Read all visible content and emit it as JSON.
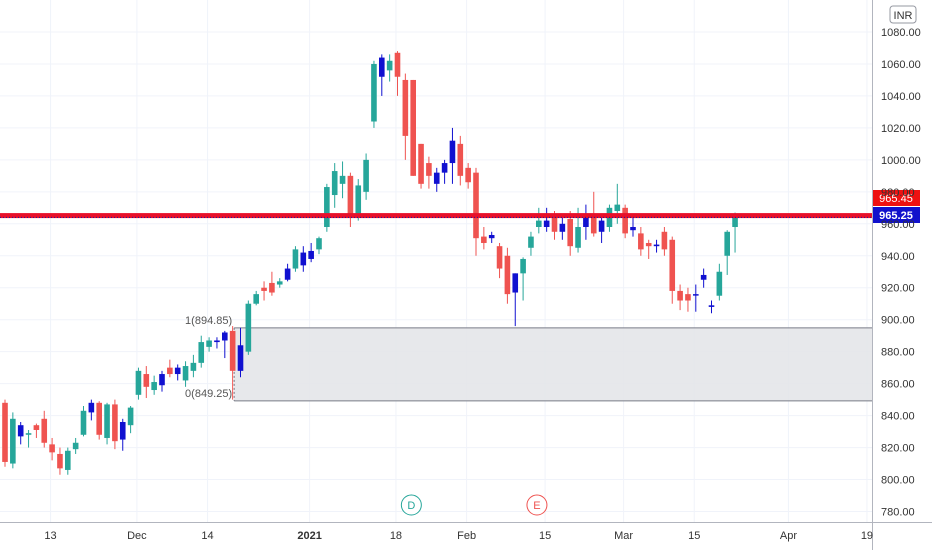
{
  "currency_badge": "INR",
  "colors": {
    "bull": "#26a69a",
    "bear": "#ef5350",
    "bull_blue": "#1010d0",
    "resistance": "#e8102a",
    "zone_fill": "#e3e4e8",
    "grid": "#f0f3fa",
    "axis_text": "#333333",
    "price_tag_red": "#ee1111",
    "price_tag_blue": "#1111cc"
  },
  "chart_data": {
    "type": "candlestick",
    "ylim": [
      775,
      1090
    ],
    "y_ticks": [
      "1080.00",
      "1060.00",
      "1040.00",
      "1020.00",
      "1000.00",
      "980.00",
      "960.00",
      "940.00",
      "920.00",
      "900.00",
      "880.00",
      "860.00",
      "840.00",
      "820.00",
      "800.00",
      "780.00"
    ],
    "y_tick_values": [
      1080,
      1060,
      1040,
      1020,
      1000,
      980,
      960,
      940,
      920,
      900,
      880,
      860,
      840,
      820,
      800,
      780
    ],
    "x_ticks": [
      {
        "label": "13",
        "index": 3,
        "bold": false
      },
      {
        "label": "Dec",
        "index": 14,
        "bold": false
      },
      {
        "label": "14",
        "index": 23,
        "bold": false
      },
      {
        "label": "2021",
        "index": 36,
        "bold": true
      },
      {
        "label": "18",
        "index": 47,
        "bold": false
      },
      {
        "label": "Feb",
        "index": 56,
        "bold": false
      },
      {
        "label": "15",
        "index": 66,
        "bold": false
      },
      {
        "label": "Mar",
        "index": 76,
        "bold": false
      },
      {
        "label": "15",
        "index": 85,
        "bold": false
      },
      {
        "label": "Apr",
        "index": 97,
        "bold": false
      },
      {
        "label": "19",
        "index": 107,
        "bold": false
      }
    ],
    "candles": [
      {
        "o": 848,
        "h": 850,
        "l": 808,
        "c": 811,
        "d": "dn"
      },
      {
        "o": 810,
        "h": 842,
        "l": 807,
        "c": 838,
        "d": "up"
      },
      {
        "o": 834,
        "h": 836,
        "l": 822,
        "c": 827,
        "d": "upb"
      },
      {
        "o": 828,
        "h": 831,
        "l": 820,
        "c": 829,
        "d": "up"
      },
      {
        "o": 831,
        "h": 835,
        "l": 826,
        "c": 834,
        "d": "dn"
      },
      {
        "o": 838,
        "h": 843,
        "l": 820,
        "c": 823,
        "d": "dn"
      },
      {
        "o": 822,
        "h": 826,
        "l": 812,
        "c": 817,
        "d": "dn"
      },
      {
        "o": 816,
        "h": 820,
        "l": 803,
        "c": 807,
        "d": "dn"
      },
      {
        "o": 806,
        "h": 820,
        "l": 803,
        "c": 818,
        "d": "up"
      },
      {
        "o": 819,
        "h": 826,
        "l": 816,
        "c": 823,
        "d": "up"
      },
      {
        "o": 828,
        "h": 846,
        "l": 827,
        "c": 843,
        "d": "up"
      },
      {
        "o": 842,
        "h": 850,
        "l": 837,
        "c": 848,
        "d": "upb"
      },
      {
        "o": 848,
        "h": 849,
        "l": 825,
        "c": 828,
        "d": "dn"
      },
      {
        "o": 847,
        "h": 848,
        "l": 822,
        "c": 826,
        "d": "up"
      },
      {
        "o": 847,
        "h": 850,
        "l": 819,
        "c": 824,
        "d": "dn"
      },
      {
        "o": 825,
        "h": 838,
        "l": 818,
        "c": 836,
        "d": "upb"
      },
      {
        "o": 834,
        "h": 846,
        "l": 829,
        "c": 845,
        "d": "up"
      },
      {
        "o": 853,
        "h": 870,
        "l": 850,
        "c": 868,
        "d": "up"
      },
      {
        "o": 866,
        "h": 871,
        "l": 851,
        "c": 858,
        "d": "dn"
      },
      {
        "o": 856,
        "h": 865,
        "l": 853,
        "c": 861,
        "d": "up"
      },
      {
        "o": 859,
        "h": 868,
        "l": 855,
        "c": 866,
        "d": "upb"
      },
      {
        "o": 870,
        "h": 875,
        "l": 864,
        "c": 866,
        "d": "dn"
      },
      {
        "o": 866,
        "h": 872,
        "l": 862,
        "c": 870,
        "d": "upb"
      },
      {
        "o": 862,
        "h": 874,
        "l": 858,
        "c": 871,
        "d": "up"
      },
      {
        "o": 868,
        "h": 878,
        "l": 864,
        "c": 873,
        "d": "up"
      },
      {
        "o": 873,
        "h": 890,
        "l": 870,
        "c": 886,
        "d": "up"
      },
      {
        "o": 883,
        "h": 889,
        "l": 880,
        "c": 887,
        "d": "up"
      },
      {
        "o": 886,
        "h": 889,
        "l": 882,
        "c": 887,
        "d": "upb"
      },
      {
        "o": 887,
        "h": 893,
        "l": 876,
        "c": 892,
        "d": "upb"
      },
      {
        "o": 893,
        "h": 896,
        "l": 850,
        "c": 868,
        "d": "dn"
      },
      {
        "o": 868,
        "h": 895,
        "l": 864,
        "c": 884,
        "d": "upb"
      },
      {
        "o": 880,
        "h": 912,
        "l": 878,
        "c": 910,
        "d": "up"
      },
      {
        "o": 910,
        "h": 918,
        "l": 909,
        "c": 916,
        "d": "up"
      },
      {
        "o": 918,
        "h": 924,
        "l": 912,
        "c": 920,
        "d": "dn"
      },
      {
        "o": 917,
        "h": 930,
        "l": 915,
        "c": 923,
        "d": "dn"
      },
      {
        "o": 922,
        "h": 926,
        "l": 920,
        "c": 924,
        "d": "up"
      },
      {
        "o": 925,
        "h": 935,
        "l": 924,
        "c": 932,
        "d": "upb"
      },
      {
        "o": 932,
        "h": 946,
        "l": 930,
        "c": 944,
        "d": "up"
      },
      {
        "o": 934,
        "h": 946,
        "l": 930,
        "c": 942,
        "d": "upb"
      },
      {
        "o": 938,
        "h": 948,
        "l": 936,
        "c": 943,
        "d": "upb"
      },
      {
        "o": 944,
        "h": 952,
        "l": 941,
        "c": 951,
        "d": "up"
      },
      {
        "o": 958,
        "h": 985,
        "l": 955,
        "c": 983,
        "d": "up"
      },
      {
        "o": 978,
        "h": 998,
        "l": 970,
        "c": 993,
        "d": "up"
      },
      {
        "o": 985,
        "h": 999,
        "l": 976,
        "c": 990,
        "d": "up"
      },
      {
        "o": 990,
        "h": 992,
        "l": 958,
        "c": 964,
        "d": "dn"
      },
      {
        "o": 966,
        "h": 988,
        "l": 962,
        "c": 984,
        "d": "up"
      },
      {
        "o": 980,
        "h": 1004,
        "l": 975,
        "c": 1000,
        "d": "up"
      },
      {
        "o": 1024,
        "h": 1062,
        "l": 1020,
        "c": 1060,
        "d": "up"
      },
      {
        "o": 1052,
        "h": 1066,
        "l": 1040,
        "c": 1064,
        "d": "upb"
      },
      {
        "o": 1056,
        "h": 1066,
        "l": 1049,
        "c": 1062,
        "d": "up"
      },
      {
        "o": 1067,
        "h": 1068,
        "l": 1040,
        "c": 1052,
        "d": "dn"
      },
      {
        "o": 1050,
        "h": 1054,
        "l": 1000,
        "c": 1015,
        "d": "dn"
      },
      {
        "o": 1050,
        "h": 1050,
        "l": 990,
        "c": 990,
        "d": "dn"
      },
      {
        "o": 1010,
        "h": 1010,
        "l": 982,
        "c": 985,
        "d": "dn"
      },
      {
        "o": 998,
        "h": 1002,
        "l": 982,
        "c": 990,
        "d": "dn"
      },
      {
        "o": 985,
        "h": 995,
        "l": 980,
        "c": 992,
        "d": "upb"
      },
      {
        "o": 992,
        "h": 1000,
        "l": 985,
        "c": 998,
        "d": "upb"
      },
      {
        "o": 998,
        "h": 1020,
        "l": 985,
        "c": 1012,
        "d": "upb"
      },
      {
        "o": 1010,
        "h": 1015,
        "l": 984,
        "c": 990,
        "d": "dn"
      },
      {
        "o": 995,
        "h": 998,
        "l": 982,
        "c": 986,
        "d": "dn"
      },
      {
        "o": 992,
        "h": 995,
        "l": 940,
        "c": 951,
        "d": "dn"
      },
      {
        "o": 952,
        "h": 958,
        "l": 944,
        "c": 948,
        "d": "dn"
      },
      {
        "o": 953,
        "h": 955,
        "l": 948,
        "c": 951,
        "d": "upb"
      },
      {
        "o": 946,
        "h": 948,
        "l": 926,
        "c": 932,
        "d": "dn"
      },
      {
        "o": 940,
        "h": 945,
        "l": 910,
        "c": 916,
        "d": "dn"
      },
      {
        "o": 917,
        "h": 929,
        "l": 896,
        "c": 929,
        "d": "upb"
      },
      {
        "o": 929,
        "h": 939,
        "l": 912,
        "c": 938,
        "d": "up"
      },
      {
        "o": 945,
        "h": 955,
        "l": 940,
        "c": 952,
        "d": "up"
      },
      {
        "o": 958,
        "h": 970,
        "l": 954,
        "c": 962,
        "d": "up"
      },
      {
        "o": 962,
        "h": 970,
        "l": 955,
        "c": 958,
        "d": "upb"
      },
      {
        "o": 964,
        "h": 968,
        "l": 950,
        "c": 955,
        "d": "dn"
      },
      {
        "o": 955,
        "h": 964,
        "l": 950,
        "c": 960,
        "d": "upb"
      },
      {
        "o": 963,
        "h": 968,
        "l": 940,
        "c": 946,
        "d": "dn"
      },
      {
        "o": 945,
        "h": 970,
        "l": 942,
        "c": 958,
        "d": "up"
      },
      {
        "o": 958,
        "h": 972,
        "l": 950,
        "c": 964,
        "d": "upb"
      },
      {
        "o": 966,
        "h": 980,
        "l": 952,
        "c": 954,
        "d": "dn"
      },
      {
        "o": 955,
        "h": 964,
        "l": 948,
        "c": 962,
        "d": "upb"
      },
      {
        "o": 958,
        "h": 972,
        "l": 955,
        "c": 970,
        "d": "up"
      },
      {
        "o": 968,
        "h": 985,
        "l": 960,
        "c": 972,
        "d": "up"
      },
      {
        "o": 970,
        "h": 972,
        "l": 951,
        "c": 954,
        "d": "dn"
      },
      {
        "o": 958,
        "h": 965,
        "l": 952,
        "c": 956,
        "d": "upb"
      },
      {
        "o": 954,
        "h": 958,
        "l": 940,
        "c": 944,
        "d": "dn"
      },
      {
        "o": 948,
        "h": 950,
        "l": 938,
        "c": 946,
        "d": "dn"
      },
      {
        "o": 946,
        "h": 950,
        "l": 942,
        "c": 947,
        "d": "upb"
      },
      {
        "o": 955,
        "h": 958,
        "l": 940,
        "c": 944,
        "d": "dn"
      },
      {
        "o": 950,
        "h": 952,
        "l": 910,
        "c": 918,
        "d": "dn"
      },
      {
        "o": 918,
        "h": 922,
        "l": 906,
        "c": 912,
        "d": "dn"
      },
      {
        "o": 916,
        "h": 920,
        "l": 905,
        "c": 912,
        "d": "dn"
      },
      {
        "o": 916,
        "h": 922,
        "l": 905,
        "c": 916,
        "d": "upb"
      },
      {
        "o": 925,
        "h": 932,
        "l": 920,
        "c": 928,
        "d": "upb"
      },
      {
        "o": 909,
        "h": 912,
        "l": 904,
        "c": 908,
        "d": "upb"
      },
      {
        "o": 915,
        "h": 935,
        "l": 912,
        "c": 930,
        "d": "up"
      },
      {
        "o": 940,
        "h": 956,
        "l": 928,
        "c": 955,
        "d": "up"
      },
      {
        "o": 958,
        "h": 967,
        "l": 942,
        "c": 965,
        "d": "up"
      }
    ],
    "horizontal_lines": [
      {
        "value": 965.45,
        "label": "965.45"
      },
      {
        "value": 965.25,
        "label": "965.25"
      }
    ],
    "fib_zone": {
      "level_1": 894.85,
      "label_1": "1(894.85)",
      "level_0": 849.25,
      "label_0": "0(849.25)",
      "start_index": 29
    },
    "events": [
      {
        "label": "D",
        "index": 51
      },
      {
        "label": "E",
        "index": 67
      }
    ]
  }
}
